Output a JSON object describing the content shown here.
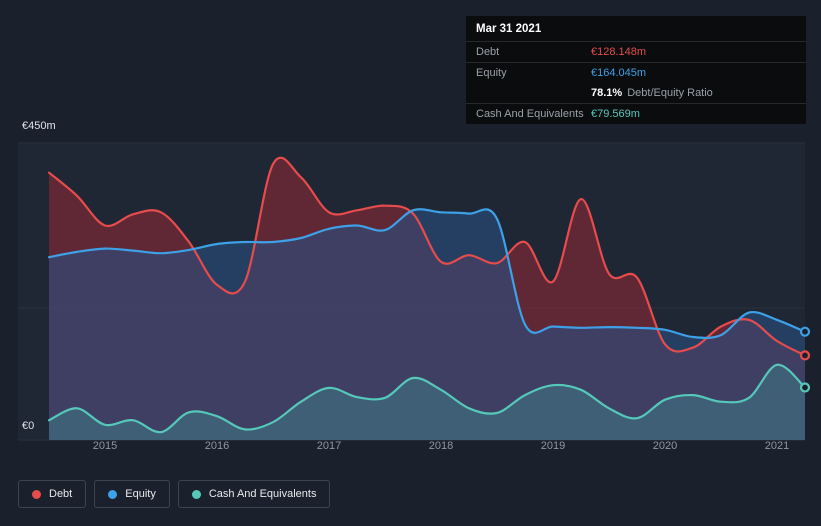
{
  "colors": {
    "background": "#1b212c",
    "plot_background": "#1f2734",
    "gridline": "#2a3240",
    "debt": "#e64c4c",
    "equity": "#3ea0e6",
    "cash": "#55c8ba",
    "ratio_text": "#ffffff",
    "axis_text": "#8e97a3"
  },
  "tooltip": {
    "date": "Mar 31 2021",
    "rows": {
      "debt_label": "Debt",
      "debt_value": "€128.148m",
      "equity_label": "Equity",
      "equity_value": "€164.045m",
      "ratio_value": "78.1%",
      "ratio_label": "Debt/Equity Ratio",
      "cash_label": "Cash And Equivalents",
      "cash_value": "€79.569m"
    }
  },
  "legend": {
    "items": [
      {
        "label": "Debt",
        "color": "#e64c4c"
      },
      {
        "label": "Equity",
        "color": "#3ea0e6"
      },
      {
        "label": "Cash And Equivalents",
        "color": "#55c8ba"
      }
    ]
  },
  "chart_data": {
    "type": "area",
    "x_unit": "year (quarterly points)",
    "y_unit": "€ millions",
    "ylim": [
      0,
      450
    ],
    "y_axis_labels": {
      "top": "€450m",
      "bottom": "€0"
    },
    "gridline_values": [
      450,
      200,
      0
    ],
    "x_ticks": [
      2015,
      2016,
      2017,
      2018,
      2019,
      2020,
      2021
    ],
    "x_tick_labels": [
      "2015",
      "2016",
      "2017",
      "2018",
      "2019",
      "2020",
      "2021"
    ],
    "x": [
      2014.5,
      2014.75,
      2015,
      2015.25,
      2015.5,
      2015.75,
      2016,
      2016.25,
      2016.5,
      2016.75,
      2017,
      2017.25,
      2017.5,
      2017.75,
      2018,
      2018.25,
      2018.5,
      2018.75,
      2019,
      2019.25,
      2019.5,
      2019.75,
      2020,
      2020.25,
      2020.5,
      2020.75,
      2021,
      2021.25
    ],
    "series": [
      {
        "name": "Debt",
        "color": "#e64c4c",
        "fill": "rgba(150,40,55,0.55)",
        "values": [
          405,
          370,
          325,
          342,
          345,
          300,
          235,
          240,
          418,
          398,
          345,
          348,
          355,
          343,
          270,
          280,
          268,
          300,
          240,
          365,
          252,
          246,
          145,
          140,
          172,
          182,
          150,
          128.148
        ]
      },
      {
        "name": "Equity",
        "color": "#3ea0e6",
        "fill": "rgba(42,80,130,0.6)",
        "values": [
          277,
          285,
          290,
          287,
          283,
          288,
          297,
          300,
          300,
          306,
          320,
          325,
          318,
          348,
          345,
          343,
          335,
          175,
          172,
          170,
          171,
          170,
          167,
          156,
          159,
          193,
          182,
          164.045
        ]
      },
      {
        "name": "Cash And Equivalents",
        "color": "#55c8ba",
        "fill": "rgba(60,180,165,0.28)",
        "values": [
          30,
          48,
          23,
          30,
          12,
          42,
          36,
          16,
          27,
          58,
          79,
          65,
          64,
          94,
          76,
          48,
          41,
          68,
          83,
          76,
          48,
          33,
          61,
          68,
          58,
          64,
          114,
          79.569
        ]
      }
    ]
  }
}
